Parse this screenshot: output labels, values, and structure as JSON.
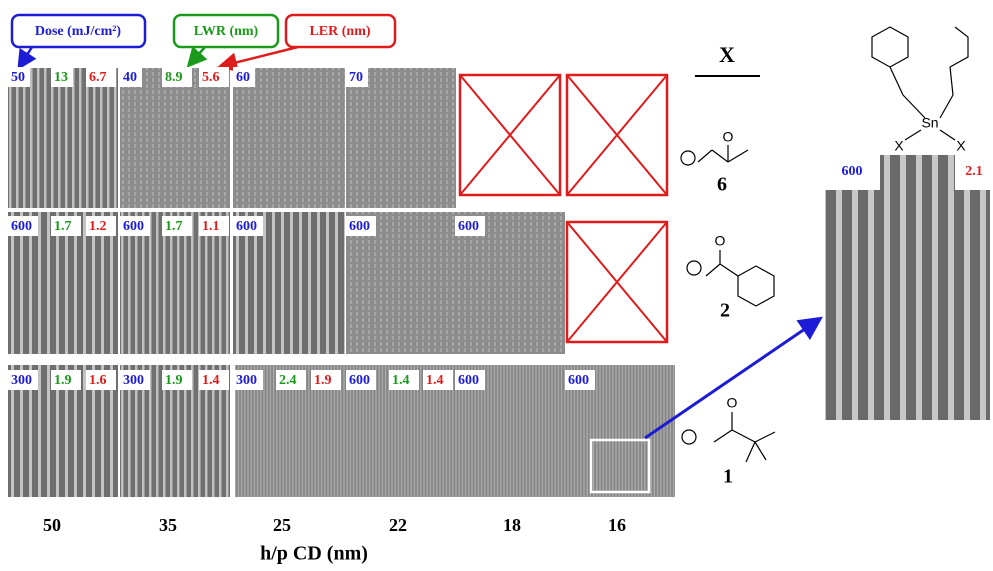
{
  "legend": {
    "dose": "Dose (mJ/cm²)",
    "lwr": "LWR (nm)",
    "ler": "LER (nm)"
  },
  "rows": [
    [
      {
        "dose": "50",
        "lwr": "13",
        "ler": "6.7"
      },
      {
        "dose": "40",
        "lwr": "8.9",
        "ler": "5.6"
      },
      {
        "dose": "60"
      },
      {
        "dose": "70"
      }
    ],
    [
      {
        "dose": "600",
        "lwr": "1.7",
        "ler": "1.2"
      },
      {
        "dose": "600",
        "lwr": "1.7",
        "ler": "1.1"
      },
      {
        "dose": "600"
      },
      {
        "dose": "600"
      },
      {
        "dose": "600"
      }
    ],
    [
      {
        "dose": "300",
        "lwr": "1.9",
        "ler": "1.6"
      },
      {
        "dose": "300",
        "lwr": "1.9",
        "ler": "1.4"
      },
      {
        "dose": "300",
        "lwr": "2.4",
        "ler": "1.9"
      },
      {
        "dose": "600",
        "lwr": "1.4",
        "ler": "1.4"
      },
      {
        "dose": "600"
      },
      {
        "dose": "600"
      }
    ]
  ],
  "x_labels": [
    "50",
    "35",
    "25",
    "22",
    "18",
    "16"
  ],
  "x_axis_title": "h/p CD (nm)",
  "column_header": "X",
  "compounds": [
    "6",
    "2",
    "1"
  ],
  "inset": {
    "dose": "600",
    "ler": "2.1"
  },
  "chemistry": {
    "metal": "Sn",
    "ligand_left": "X",
    "ligand_right": "X",
    "oxygen": "O"
  }
}
